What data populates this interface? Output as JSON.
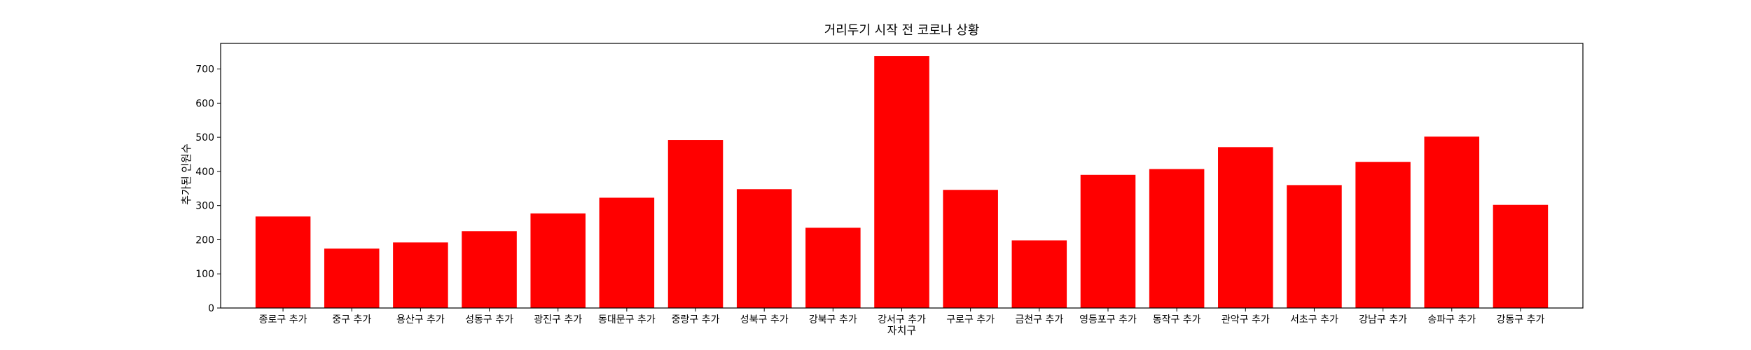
{
  "chart_data": {
    "type": "bar",
    "title": "거리두기 시작 전 코로나 상황",
    "xlabel": "자치구",
    "ylabel": "추가된 인원수",
    "categories": [
      "종로구 추가",
      "중구 추가",
      "용산구 추가",
      "성동구 추가",
      "광진구 추가",
      "동대문구 추가",
      "중랑구 추가",
      "성북구 추가",
      "강북구 추가",
      "강서구 추가",
      "구로구 추가",
      "금천구 추가",
      "영등포구 추가",
      "동작구 추가",
      "관악구 추가",
      "서초구 추가",
      "강남구 추가",
      "송파구 추가",
      "강동구 추가"
    ],
    "values": [
      268,
      174,
      192,
      225,
      277,
      323,
      492,
      348,
      235,
      738,
      346,
      198,
      390,
      407,
      471,
      360,
      428,
      502,
      302
    ],
    "yticks": [
      0,
      100,
      200,
      300,
      400,
      500,
      600,
      700
    ],
    "ylim": [
      0,
      775
    ],
    "bar_color": "#ff0000",
    "grid": false,
    "legend": false
  }
}
